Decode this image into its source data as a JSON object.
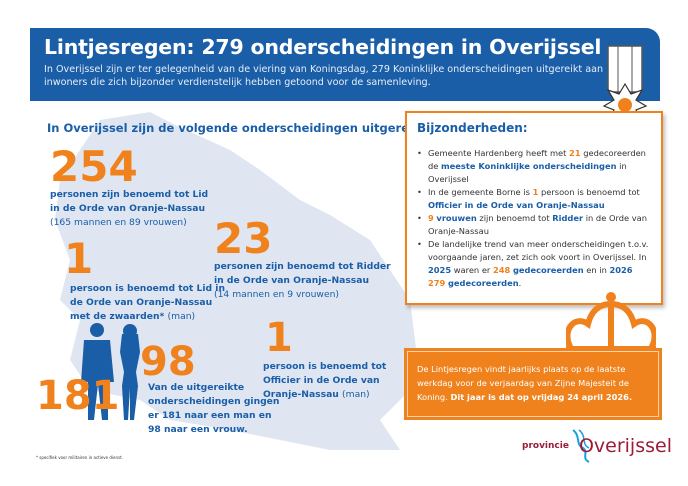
{
  "header": {
    "title": "Lintjesregen: 279 onderscheidingen in Overijssel",
    "subtitle": "In Overijssel zijn er ter gelegenheid van de viering van Koningsdag, 279 Koninklijke onderscheidingen uitgereikt aan inwoners die zich bijzonder verdienstelijk hebben getoond voor de samenleving."
  },
  "left_heading": "In Overijssel zijn de volgende onderscheidingen uitgereikt:",
  "stats": {
    "lid": {
      "number": "254",
      "line1": "personen zijn benoemd tot Lid",
      "line2": "in de Orde van Oranje-Nassau",
      "detail": "(165 mannen en 89 vrouwen)"
    },
    "zwaarden": {
      "number": "1",
      "line1": "persoon is benoemd tot Lid in",
      "line2": "de Orde van Oranje-Nassau",
      "line3": "met de zwaarden*",
      "detail": "(man)"
    },
    "ridder": {
      "number": "23",
      "line1": "personen zijn benoemd tot Ridder",
      "line2": "in de Orde van Oranje-Nassau",
      "detail": "(14 mannen en 9 vrouwen)"
    },
    "officier": {
      "number": "1",
      "line1": "persoon is benoemd tot",
      "line2": "Officier in de Orde van",
      "line3": "Oranje-Nassau",
      "detail": "(man)"
    },
    "gender": {
      "men": "181",
      "women": "98",
      "line1": "Van de uitgereikte",
      "line2": "onderscheidingen gingen",
      "line3a": "er",
      "line3b": "181",
      "line3c": "naar een man en",
      "line4": "98 naar een vrouw."
    }
  },
  "bijzonderheden": {
    "title": "Bijzonderheden:",
    "b1": [
      "Gemeente Hardenberg heeft met ",
      "21",
      " gedecoreerden de ",
      "meeste Koninklijke onderscheidingen",
      " in Overijssel"
    ],
    "b2": [
      "In de gemeente Borne is ",
      "1",
      " persoon is benoemd tot ",
      "Officier in de Orde van Oranje-Nassau"
    ],
    "b3": [
      "9",
      " ",
      "vrouwen",
      " zijn benoemd tot ",
      "Ridder",
      " in de Orde van Oranje-Nassau"
    ],
    "b4": [
      "De landelijke trend van meer onderscheidingen t.o.v. voorgaande jaren, zet zich ook voort in Overijssel. In ",
      "2025",
      " waren er ",
      "248",
      " ",
      "gedecoreerden",
      " en in ",
      "2026",
      " ",
      "279",
      " ",
      "gedecoreerden",
      "."
    ]
  },
  "notice": {
    "text": "De Lintjesregen vindt jaarlijks plaats op de laatste werkdag voor de verjaardag van Zijne Majesteit de Koning. ",
    "bold": "Dit jaar is dat op vrijdag 24 april 2026."
  },
  "footnote": "* specifiek voor militairen in actieve dienst.",
  "logo": {
    "prefix": "provincie",
    "name": "Overijssel"
  },
  "colors": {
    "blue": "#1a5ea8",
    "orange": "#f0821e",
    "map": "#dfe6f1",
    "logo_red": "#9b1b3a"
  }
}
